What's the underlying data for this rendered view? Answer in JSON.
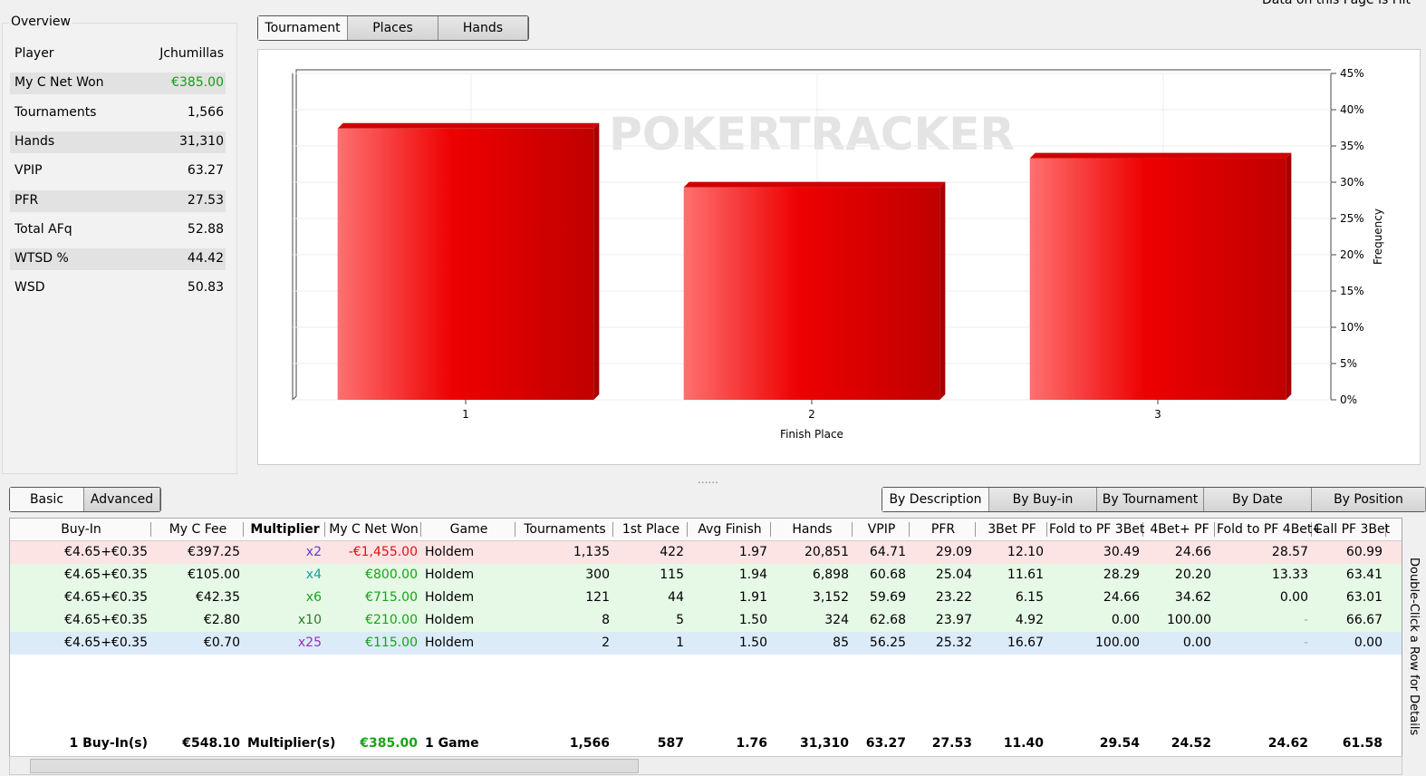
{
  "header_note": "Data on this Page is Filt",
  "overview": {
    "title": "Overview",
    "rows": [
      [
        "Player",
        "Jchumillas"
      ],
      [
        "My C Net Won",
        "€385.00"
      ],
      [
        "Tournaments",
        "1,566"
      ],
      [
        "Hands",
        "31,310"
      ],
      [
        "VPIP",
        "63.27"
      ],
      [
        "PFR",
        "27.53"
      ],
      [
        "Total AFq",
        "52.88"
      ],
      [
        "WTSD %",
        "44.42"
      ],
      [
        "WSD",
        "50.83"
      ]
    ]
  },
  "view_tabs": [
    "Tournament",
    "Places",
    "Hands"
  ],
  "chart": {
    "type": "bar",
    "watermark": "POKERTRACKER",
    "categories": [
      "1",
      "2",
      "3"
    ],
    "values": [
      37.4,
      29.3,
      33.3
    ],
    "color": "#ee0000",
    "xlabel": "Finish Place",
    "ylabel": "Frequency",
    "ylim": [
      0,
      45
    ],
    "yticks": [
      {
        "value": 0,
        "label": "0%"
      },
      {
        "value": 5,
        "label": "5%"
      },
      {
        "value": 10,
        "label": "10%"
      },
      {
        "value": 15,
        "label": "15%"
      },
      {
        "value": 20,
        "label": "20%"
      },
      {
        "value": 25,
        "label": "25%"
      },
      {
        "value": 30,
        "label": "30%"
      },
      {
        "value": 35,
        "label": "35%"
      },
      {
        "value": 40,
        "label": "40%"
      },
      {
        "value": 45,
        "label": "45%"
      }
    ],
    "grid": true
  },
  "table": {
    "mode_tabs": [
      "Basic",
      "Advanced"
    ],
    "group_tabs": [
      "By Description",
      "By Buy-in",
      "By Tournament",
      "By Date",
      "By Position"
    ],
    "columns": [
      "Buy-In",
      "My C Fee",
      "Multiplier",
      "My C Net Won",
      "Game",
      "Tournaments",
      "1st Place",
      "Avg Finish",
      "Hands",
      "VPIP",
      "PFR",
      "3Bet PF",
      "Fold to PF 3Bet",
      "4Bet+ PF",
      "Fold to PF 4Bet+",
      "Call PF 3Bet"
    ],
    "rows": [
      [
        "€4.65+€0.35",
        "€397.25",
        "x2",
        "-€1,455.00",
        "Holdem",
        "1,135",
        "422",
        "1.97",
        "20,851",
        "64.71",
        "29.09",
        "12.10",
        "30.49",
        "24.66",
        "28.57",
        "60.99"
      ],
      [
        "€4.65+€0.35",
        "€105.00",
        "x4",
        "€800.00",
        "Holdem",
        "300",
        "115",
        "1.94",
        "6,898",
        "60.68",
        "25.04",
        "11.61",
        "28.29",
        "20.20",
        "13.33",
        "63.41"
      ],
      [
        "€4.65+€0.35",
        "€42.35",
        "x6",
        "€715.00",
        "Holdem",
        "121",
        "44",
        "1.91",
        "3,152",
        "59.69",
        "23.22",
        "6.15",
        "24.66",
        "34.62",
        "0.00",
        "63.01"
      ],
      [
        "€4.65+€0.35",
        "€2.80",
        "x10",
        "€210.00",
        "Holdem",
        "8",
        "5",
        "1.50",
        "324",
        "62.68",
        "23.97",
        "4.92",
        "0.00",
        "100.00",
        "-",
        "66.67"
      ],
      [
        "€4.65+€0.35",
        "€0.70",
        "x25",
        "€115.00",
        "Holdem",
        "2",
        "1",
        "1.50",
        "85",
        "56.25",
        "25.32",
        "16.67",
        "100.00",
        "0.00",
        "-",
        "0.00"
      ]
    ],
    "totals": [
      "1 Buy-In(s)",
      "€548.10",
      "Multiplier(s)",
      "€385.00",
      "1 Game",
      "1,566",
      "587",
      "1.76",
      "31,310",
      "63.27",
      "27.53",
      "11.40",
      "29.54",
      "24.52",
      "24.62",
      "61.58"
    ],
    "hint": "Double-Click a Row for Details"
  }
}
